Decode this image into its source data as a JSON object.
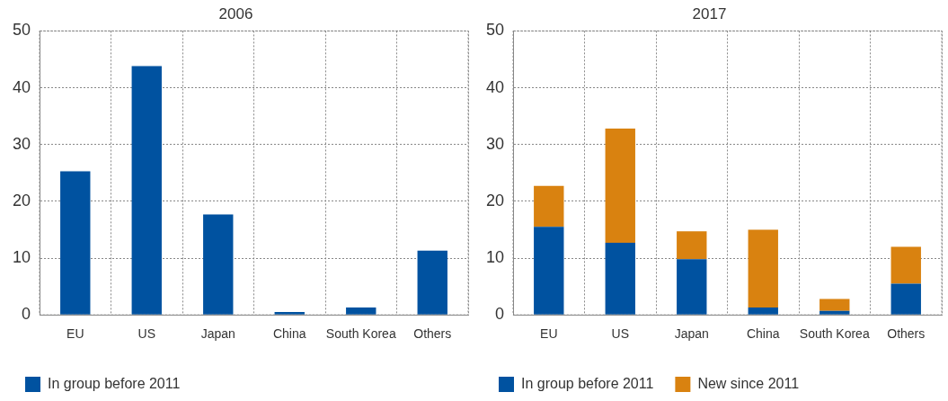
{
  "chart_data": [
    {
      "type": "bar",
      "title": "2006",
      "categories": [
        "EU",
        "US",
        "Japan",
        "China",
        "South Korea",
        "Others"
      ],
      "series": [
        {
          "name": "In group before 2011",
          "color": "#0052a0",
          "values": [
            25.3,
            43.8,
            17.7,
            0.5,
            1.3,
            11.3
          ]
        }
      ],
      "ylim": [
        0,
        50
      ],
      "yticks": [
        0,
        10,
        20,
        30,
        40,
        50
      ],
      "grid": true,
      "legend": "bottom left",
      "stacked": true
    },
    {
      "type": "bar",
      "title": "2017",
      "categories": [
        "EU",
        "US",
        "Japan",
        "China",
        "South Korea",
        "Others"
      ],
      "series": [
        {
          "name": "In group before 2011",
          "color": "#0052a0",
          "values": [
            15.5,
            12.7,
            9.8,
            1.3,
            0.7,
            5.5
          ]
        },
        {
          "name": "New since 2011",
          "color": "#d98210",
          "values": [
            7.2,
            20.1,
            4.9,
            13.7,
            2.1,
            6.5
          ]
        }
      ],
      "ylim": [
        0,
        50
      ],
      "yticks": [
        0,
        10,
        20,
        30,
        40,
        50
      ],
      "grid": true,
      "legend": "bottom left",
      "stacked": true
    }
  ]
}
